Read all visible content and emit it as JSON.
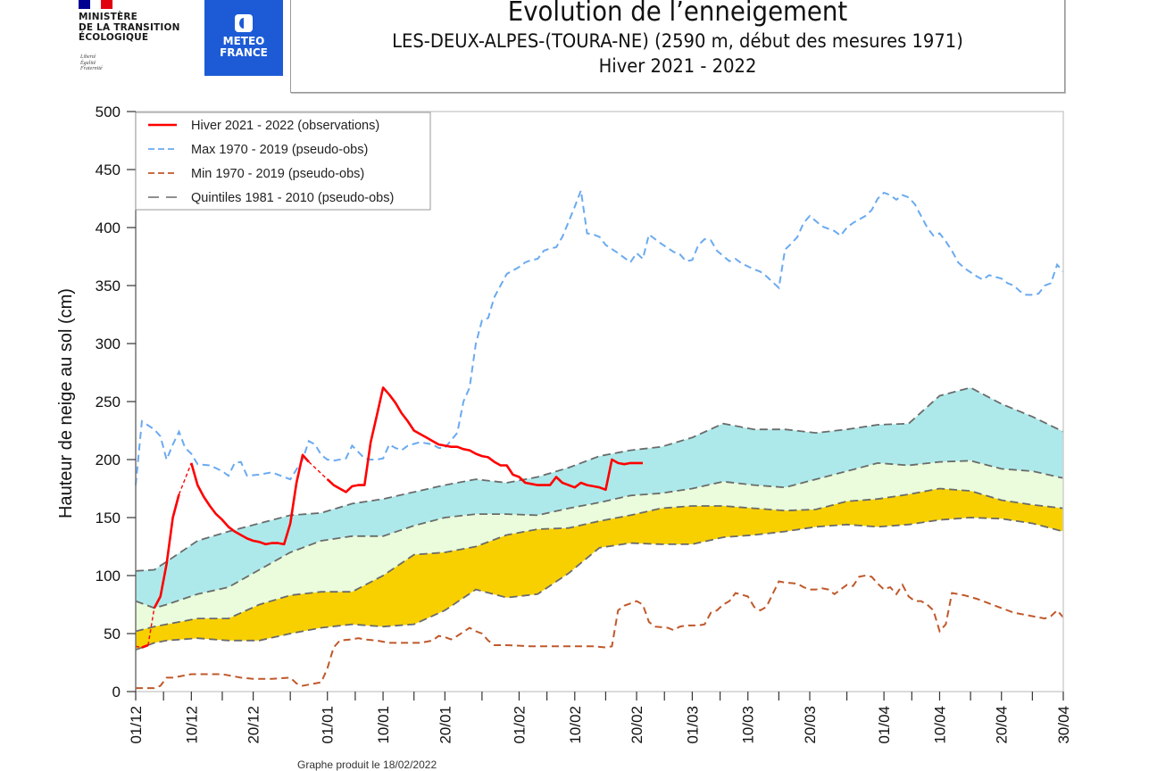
{
  "header": {
    "ministry_lines": [
      "MINISTÈRE",
      "DE LA TRANSITION",
      "ÉCOLOGIQUE"
    ],
    "motto_lines": [
      "Liberté",
      "Égalité",
      "Fraternité"
    ],
    "meteo_lines": [
      "METEO",
      "FRANCE"
    ],
    "title": "Evolution de l’enneigement",
    "subtitle": "LES-DEUX-ALPES-(TOURA-NE) (2590 m, début des mesures 1971)",
    "season": "Hiver 2021 - 2022",
    "footer": "Graphe produit le 18/02/2022"
  },
  "colors": {
    "observation": "#ff0000",
    "max": "#6aaaf0",
    "min": "#c0582a",
    "quintile": "#6b6b6b",
    "band_top": "#ade9ea",
    "band_mid": "#eafcdb",
    "band_low": "#f8d000",
    "flag_blue": "#000091",
    "flag_red": "#e1000f",
    "meteo_blue": "#1d5bd6"
  },
  "chart_data": {
    "type": "line",
    "title": "Evolution de l’enneigement",
    "subtitle": "LES-DEUX-ALPES-(TOURA-NE) (2590 m, début des mesures 1971) — Hiver 2021 - 2022",
    "xlabel": "",
    "ylabel": "Hauteur de neige au sol (cm)",
    "x_unit": "days since 01/12/2021",
    "xlim": [
      0,
      150
    ],
    "ylim": [
      0,
      500
    ],
    "yticks": [
      0,
      50,
      100,
      150,
      200,
      250,
      300,
      350,
      400,
      450,
      500
    ],
    "xticks": [
      {
        "day": 0,
        "label": "01/12"
      },
      {
        "day": 9,
        "label": "10/12"
      },
      {
        "day": 19,
        "label": "20/12"
      },
      {
        "day": 31,
        "label": "01/01"
      },
      {
        "day": 40,
        "label": "10/01"
      },
      {
        "day": 50,
        "label": "20/01"
      },
      {
        "day": 62,
        "label": "01/02"
      },
      {
        "day": 71,
        "label": "10/02"
      },
      {
        "day": 81,
        "label": "20/02"
      },
      {
        "day": 90,
        "label": "01/03"
      },
      {
        "day": 99,
        "label": "10/03"
      },
      {
        "day": 109,
        "label": "20/03"
      },
      {
        "day": 121,
        "label": "01/04"
      },
      {
        "day": 130,
        "label": "10/04"
      },
      {
        "day": 140,
        "label": "20/04"
      },
      {
        "day": 150,
        "label": "30/04"
      }
    ],
    "minor_xticks": [
      4.5,
      14,
      25,
      35.5,
      45,
      56,
      66.5,
      76,
      85.5,
      94.5,
      104,
      115,
      125.5,
      135,
      145
    ],
    "grid": false,
    "legend_position": "top-left",
    "legend": [
      {
        "label": "Hiver 2021 - 2022 (observations)",
        "style": "solid",
        "color_key": "observation"
      },
      {
        "label": "Max 1970 - 2019 (pseudo-obs)",
        "style": "dashed",
        "color_key": "max"
      },
      {
        "label": "Min 1970 - 2019 (pseudo-obs)",
        "style": "dashed",
        "color_key": "min"
      },
      {
        "label": "Quintiles 1981 - 2010 (pseudo-obs)",
        "style": "longdash",
        "color_key": "quintile"
      }
    ],
    "quintiles": {
      "x": [
        0,
        3,
        5,
        10,
        15,
        20,
        25,
        30,
        35,
        40,
        45,
        50,
        55,
        60,
        65,
        70,
        75,
        80,
        85,
        90,
        95,
        100,
        105,
        110,
        115,
        120,
        125,
        130,
        135,
        140,
        145,
        150
      ],
      "q80": [
        104,
        105,
        112,
        130,
        138,
        145,
        152,
        154,
        162,
        166,
        172,
        178,
        183,
        180,
        185,
        193,
        203,
        208,
        211,
        219,
        231,
        226,
        226,
        223,
        226,
        230,
        231,
        255,
        262,
        248,
        237,
        224
      ],
      "q60": [
        78,
        72,
        75,
        84,
        90,
        105,
        120,
        130,
        134,
        134,
        143,
        150,
        153,
        153,
        152,
        158,
        163,
        169,
        171,
        175,
        181,
        178,
        176,
        183,
        190,
        197,
        195,
        198,
        199,
        192,
        190,
        184
      ],
      "q40": [
        52,
        56,
        58,
        63,
        63,
        75,
        83,
        86,
        86,
        100,
        118,
        120,
        125,
        135,
        140,
        141,
        147,
        152,
        158,
        160,
        160,
        158,
        156,
        157,
        164,
        166,
        170,
        175,
        173,
        165,
        161,
        158
      ],
      "q20": [
        36,
        42,
        44,
        46,
        44,
        44,
        50,
        55,
        58,
        56,
        58,
        70,
        88,
        81,
        84,
        102,
        124,
        128,
        127,
        127,
        133,
        135,
        138,
        142,
        144,
        142,
        144,
        148,
        150,
        149,
        145,
        138
      ]
    },
    "series": [
      {
        "name": "Max 1970 - 2019 (pseudo-obs)",
        "x": [
          0,
          1,
          3,
          4,
          5,
          6,
          7,
          8,
          9,
          10,
          12,
          14,
          15,
          16,
          17,
          18,
          20,
          22,
          24,
          25,
          27,
          28,
          29,
          30,
          31,
          32,
          34,
          35,
          37,
          38,
          39,
          40,
          41,
          42,
          43,
          44,
          46,
          48,
          49,
          50,
          52,
          53,
          54,
          55,
          56,
          57,
          58,
          60,
          61,
          62,
          63,
          64,
          65,
          66,
          67,
          68,
          69,
          70,
          71,
          72,
          73,
          74,
          75,
          76,
          78,
          79,
          80,
          81,
          82,
          83,
          84,
          85,
          87,
          88,
          89,
          90,
          91,
          92,
          93,
          94,
          96,
          97,
          98,
          100,
          101,
          102,
          104,
          105,
          106,
          107,
          108,
          109,
          111,
          112,
          113,
          114,
          115,
          116,
          118,
          119,
          120,
          121,
          122,
          123,
          124,
          125,
          126,
          127,
          128,
          129,
          130,
          131,
          132,
          133,
          134,
          136,
          137,
          138,
          140,
          141,
          142,
          143,
          144,
          145,
          146,
          147,
          148,
          149,
          150
        ],
        "values": [
          178,
          233,
          226,
          220,
          200,
          213,
          224,
          210,
          205,
          196,
          195,
          190,
          186,
          197,
          198,
          186,
          187,
          189,
          185,
          183,
          200,
          216,
          213,
          204,
          200,
          199,
          201,
          212,
          201,
          200,
          200,
          201,
          213,
          210,
          208,
          212,
          215,
          213,
          210,
          210,
          223,
          250,
          262,
          300,
          320,
          322,
          340,
          360,
          363,
          366,
          370,
          372,
          373,
          380,
          382,
          383,
          392,
          405,
          418,
          432,
          395,
          394,
          392,
          385,
          378,
          374,
          370,
          378,
          373,
          394,
          390,
          386,
          379,
          377,
          371,
          372,
          385,
          390,
          389,
          380,
          371,
          373,
          369,
          364,
          362,
          358,
          348,
          381,
          386,
          392,
          404,
          410,
          401,
          399,
          397,
          393,
          400,
          404,
          410,
          415,
          425,
          430,
          428,
          424,
          428,
          426,
          420,
          410,
          400,
          393,
          395,
          388,
          380,
          370,
          365,
          358,
          355,
          359,
          356,
          352,
          350,
          345,
          342,
          342,
          343,
          350,
          352,
          368,
          362
        ]
      },
      {
        "name": "Min 1970 - 2019 (pseudo-obs)",
        "x": [
          0,
          3,
          4,
          5,
          6,
          7,
          9,
          12,
          14,
          15,
          17,
          19,
          22,
          25,
          26,
          27,
          30,
          31,
          32,
          33,
          35,
          36,
          37,
          39,
          41,
          44,
          46,
          48,
          49,
          50,
          51,
          52,
          54,
          55,
          56,
          57,
          58,
          60,
          64,
          66,
          68,
          70,
          72,
          74,
          76,
          77,
          78,
          79,
          81,
          82,
          83,
          84,
          86,
          87,
          88,
          89,
          91,
          92,
          93,
          94,
          95,
          96,
          97,
          99,
          100,
          101,
          102,
          103,
          104,
          105,
          107,
          108,
          109,
          110,
          111,
          112,
          113,
          114,
          115,
          116,
          117,
          118,
          119,
          120,
          121,
          122,
          123,
          124,
          125,
          126,
          127,
          128,
          129,
          130,
          131,
          132,
          134,
          136,
          138,
          140,
          141,
          142,
          143,
          144,
          146,
          147,
          148,
          149,
          150
        ],
        "values": [
          3,
          3,
          5,
          12,
          12,
          13,
          15,
          15,
          15,
          14,
          12,
          11,
          11,
          12,
          7,
          5,
          8,
          20,
          38,
          44,
          45,
          46,
          45,
          44,
          42,
          42,
          42,
          44,
          48,
          47,
          45,
          48,
          55,
          52,
          50,
          44,
          40,
          40,
          39,
          39,
          39,
          39,
          39,
          39,
          38,
          39,
          70,
          74,
          78,
          75,
          60,
          56,
          55,
          53,
          56,
          57,
          57,
          58,
          68,
          70,
          75,
          78,
          85,
          82,
          73,
          70,
          73,
          84,
          95,
          94,
          93,
          90,
          88,
          88,
          89,
          88,
          84,
          88,
          92,
          91,
          99,
          100,
          99,
          93,
          88,
          90,
          84,
          92,
          82,
          78,
          78,
          75,
          70,
          52,
          58,
          85,
          83,
          80,
          76,
          72,
          70,
          68,
          67,
          66,
          64,
          63,
          65,
          70,
          64
        ]
      },
      {
        "name": "Hiver 2021 - 2022 (observations)",
        "segments": [
          {
            "style": "dashed",
            "x": [
              0,
              1
            ],
            "values": [
              39,
              38
            ]
          },
          {
            "style": "solid",
            "x": [
              1,
              2
            ],
            "values": [
              38,
              40
            ]
          },
          {
            "style": "dashed",
            "x": [
              2,
              3
            ],
            "values": [
              40,
              72
            ]
          },
          {
            "style": "solid",
            "x": [
              3,
              4,
              5,
              6,
              7
            ],
            "values": [
              72,
              82,
              110,
              150,
              170
            ]
          },
          {
            "style": "dashed",
            "x": [
              7,
              9
            ],
            "values": [
              170,
              197
            ]
          },
          {
            "style": "solid",
            "x": [
              9,
              10,
              11,
              12,
              13,
              14,
              15,
              16,
              17,
              18,
              19,
              20,
              21,
              22,
              23,
              24,
              25,
              26,
              27,
              28
            ],
            "values": [
              197,
              178,
              168,
              160,
              153,
              148,
              142,
              138,
              135,
              132,
              130,
              129,
              127,
              128,
              128,
              127,
              145,
              180,
              204,
              198
            ]
          },
          {
            "style": "dashed",
            "x": [
              28,
              31
            ],
            "values": [
              198,
              183
            ]
          },
          {
            "style": "solid",
            "x": [
              31,
              32,
              33,
              34,
              35,
              36,
              37,
              38,
              39,
              40,
              41,
              42,
              43,
              44,
              45,
              46,
              47,
              48,
              49,
              50,
              51,
              52,
              53,
              54,
              55,
              56,
              57,
              58,
              59,
              60,
              61,
              62,
              63,
              64,
              65,
              66,
              67,
              68,
              69,
              70,
              71,
              72,
              73,
              74,
              75,
              76,
              77,
              78,
              79,
              80,
              81,
              82
            ],
            "values": [
              183,
              178,
              175,
              172,
              177,
              178,
              178,
              215,
              238,
              262,
              256,
              249,
              240,
              233,
              225,
              222,
              219,
              216,
              213,
              212,
              211,
              211,
              209,
              208,
              205,
              203,
              202,
              198,
              195,
              195,
              187,
              185,
              180,
              179,
              178,
              178,
              178,
              185,
              180,
              178,
              176,
              180,
              178,
              177,
              176,
              174,
              200,
              197,
              196,
              197,
              197,
              197
            ]
          }
        ]
      }
    ]
  }
}
